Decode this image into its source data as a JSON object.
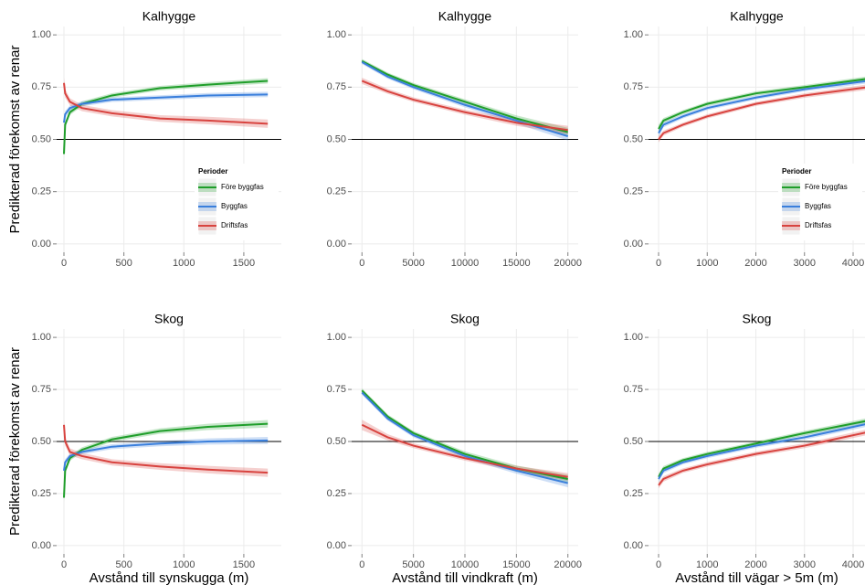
{
  "chart_data": [
    {
      "type": "line",
      "title": "Kalhygge",
      "ylabel": "Predikterad förekomst av renar",
      "legend_title": "Perioder",
      "legend": "lower right",
      "x": [
        0,
        10,
        50,
        150,
        400,
        800,
        1200,
        1700
      ],
      "xlim": [
        -61,
        1813
      ],
      "xticks": [
        0,
        500,
        1000,
        1500
      ],
      "ylim": [
        -0.04,
        1.04
      ],
      "yticks": [
        {
          "value": 0,
          "label": "0.00"
        },
        0.25,
        {
          "value": 0.5,
          "label": "0.50"
        },
        0.75,
        {
          "value": 1,
          "label": "1.00"
        }
      ],
      "hline": 0.5,
      "grid": true,
      "series": [
        {
          "name": "Före byggfas",
          "color": "#1f9e2a",
          "values": [
            0.43,
            0.57,
            0.63,
            0.67,
            0.71,
            0.745,
            0.762,
            0.78
          ],
          "lower": [
            0.41,
            0.555,
            0.617,
            0.658,
            0.699,
            0.734,
            0.75,
            0.767
          ],
          "upper": [
            0.45,
            0.585,
            0.643,
            0.682,
            0.721,
            0.756,
            0.774,
            0.793
          ]
        },
        {
          "name": "Byggfas",
          "color": "#3a7fdc",
          "values": [
            0.58,
            0.62,
            0.65,
            0.67,
            0.69,
            0.7,
            0.71,
            0.715
          ],
          "lower": [
            0.56,
            0.605,
            0.637,
            0.658,
            0.679,
            0.689,
            0.698,
            0.702
          ],
          "upper": [
            0.6,
            0.635,
            0.663,
            0.682,
            0.701,
            0.711,
            0.722,
            0.728
          ]
        },
        {
          "name": "Driftsfas",
          "color": "#d8433f",
          "values": [
            0.77,
            0.72,
            0.68,
            0.65,
            0.625,
            0.6,
            0.59,
            0.575
          ],
          "lower": [
            0.745,
            0.7,
            0.663,
            0.635,
            0.61,
            0.584,
            0.572,
            0.555
          ],
          "upper": [
            0.795,
            0.74,
            0.697,
            0.665,
            0.64,
            0.616,
            0.608,
            0.595
          ]
        }
      ]
    },
    {
      "type": "line",
      "title": "Kalhygge",
      "x": [
        0,
        2500,
        5000,
        10000,
        15000,
        20000
      ],
      "xlim": [
        -1000,
        21000
      ],
      "xticks": [
        0,
        5000,
        10000,
        15000,
        20000
      ],
      "ylim": [
        -0.04,
        1.04
      ],
      "yticks": [
        {
          "value": 0,
          "label": "0.00"
        },
        0.25,
        {
          "value": 0.5,
          "label": "0.50"
        },
        0.75,
        {
          "value": 1,
          "label": "1.00"
        }
      ],
      "hline": 0.5,
      "grid": true,
      "series": [
        {
          "name": "Före byggfas",
          "color": "#1f9e2a",
          "values": [
            0.875,
            0.81,
            0.76,
            0.68,
            0.6,
            0.535
          ],
          "lower": [
            0.865,
            0.8,
            0.75,
            0.668,
            0.585,
            0.515
          ],
          "upper": [
            0.885,
            0.82,
            0.77,
            0.692,
            0.615,
            0.555
          ]
        },
        {
          "name": "Byggfas",
          "color": "#3a7fdc",
          "values": [
            0.87,
            0.8,
            0.75,
            0.665,
            0.59,
            0.515
          ],
          "lower": [
            0.86,
            0.79,
            0.74,
            0.653,
            0.575,
            0.495
          ],
          "upper": [
            0.88,
            0.81,
            0.76,
            0.677,
            0.605,
            0.535
          ]
        },
        {
          "name": "Driftsfas",
          "color": "#d8433f",
          "values": [
            0.78,
            0.73,
            0.69,
            0.63,
            0.58,
            0.545
          ],
          "lower": [
            0.765,
            0.718,
            0.679,
            0.618,
            0.565,
            0.525
          ],
          "upper": [
            0.795,
            0.742,
            0.701,
            0.642,
            0.595,
            0.565
          ]
        }
      ]
    },
    {
      "type": "line",
      "title": "Kalhygge",
      "legend_title": "Perioder",
      "legend": "lower right",
      "x": [
        0,
        100,
        500,
        1000,
        2000,
        3000,
        4300
      ],
      "xlim": [
        -207,
        4244
      ],
      "xticks": [
        0,
        1000,
        2000,
        3000,
        4000
      ],
      "ylim": [
        -0.04,
        1.04
      ],
      "yticks": [
        {
          "value": 0,
          "label": "0.00"
        },
        0.25,
        {
          "value": 0.5,
          "label": "0.50"
        },
        0.75,
        {
          "value": 1,
          "label": "1.00"
        }
      ],
      "hline": 0.5,
      "grid": true,
      "series": [
        {
          "name": "Före byggfas",
          "color": "#1f9e2a",
          "values": [
            0.55,
            0.59,
            0.63,
            0.67,
            0.72,
            0.75,
            0.79
          ],
          "lower": [
            0.53,
            0.578,
            0.62,
            0.66,
            0.71,
            0.74,
            0.778
          ],
          "upper": [
            0.57,
            0.602,
            0.64,
            0.68,
            0.73,
            0.76,
            0.802
          ]
        },
        {
          "name": "Byggfas",
          "color": "#3a7fdc",
          "values": [
            0.53,
            0.57,
            0.61,
            0.65,
            0.7,
            0.74,
            0.78
          ],
          "lower": [
            0.51,
            0.558,
            0.6,
            0.64,
            0.69,
            0.73,
            0.768
          ],
          "upper": [
            0.55,
            0.582,
            0.62,
            0.66,
            0.71,
            0.75,
            0.792
          ]
        },
        {
          "name": "Driftsfas",
          "color": "#d8433f",
          "values": [
            0.5,
            0.53,
            0.57,
            0.61,
            0.67,
            0.71,
            0.75
          ],
          "lower": [
            0.485,
            0.518,
            0.56,
            0.6,
            0.66,
            0.699,
            0.737
          ],
          "upper": [
            0.515,
            0.542,
            0.58,
            0.62,
            0.68,
            0.721,
            0.763
          ]
        }
      ]
    },
    {
      "type": "line",
      "title": "Skog",
      "ylabel": "Predikterad förekomst av renar",
      "xlabel": "Avstånd till synskugga (m)",
      "x": [
        0,
        10,
        50,
        150,
        400,
        800,
        1200,
        1700
      ],
      "xlim": [
        -61,
        1813
      ],
      "xticks": [
        0,
        500,
        1000,
        1500
      ],
      "ylim": [
        -0.04,
        1.04
      ],
      "yticks": [
        {
          "value": 0,
          "label": "0.00"
        },
        0.25,
        {
          "value": 0.5,
          "label": "0.50"
        },
        0.75,
        {
          "value": 1,
          "label": "1.00"
        }
      ],
      "hline": 0.5,
      "grid": true,
      "series": [
        {
          "name": "Före byggfas",
          "color": "#1f9e2a",
          "values": [
            0.23,
            0.36,
            0.42,
            0.46,
            0.51,
            0.55,
            0.57,
            0.585
          ],
          "lower": [
            0.21,
            0.345,
            0.407,
            0.448,
            0.498,
            0.537,
            0.555,
            0.567
          ],
          "upper": [
            0.25,
            0.375,
            0.433,
            0.472,
            0.522,
            0.563,
            0.585,
            0.603
          ]
        },
        {
          "name": "Byggfas",
          "color": "#3a7fdc",
          "values": [
            0.36,
            0.4,
            0.43,
            0.45,
            0.475,
            0.49,
            0.5,
            0.505
          ],
          "lower": [
            0.34,
            0.385,
            0.417,
            0.438,
            0.463,
            0.477,
            0.485,
            0.488
          ],
          "upper": [
            0.38,
            0.415,
            0.443,
            0.462,
            0.487,
            0.503,
            0.515,
            0.522
          ]
        },
        {
          "name": "Driftsfas",
          "color": "#d8433f",
          "values": [
            0.58,
            0.5,
            0.45,
            0.43,
            0.4,
            0.38,
            0.365,
            0.35
          ],
          "lower": [
            0.555,
            0.48,
            0.433,
            0.415,
            0.385,
            0.364,
            0.347,
            0.33
          ],
          "upper": [
            0.605,
            0.52,
            0.467,
            0.445,
            0.415,
            0.396,
            0.383,
            0.37
          ]
        }
      ]
    },
    {
      "type": "line",
      "title": "Skog",
      "xlabel": "Avstånd till vindkraft (m)",
      "x": [
        0,
        2500,
        5000,
        10000,
        15000,
        20000
      ],
      "xlim": [
        -1000,
        21000
      ],
      "xticks": [
        0,
        5000,
        10000,
        15000,
        20000
      ],
      "ylim": [
        -0.04,
        1.04
      ],
      "yticks": [
        {
          "value": 0,
          "label": "0.00"
        },
        0.25,
        {
          "value": 0.5,
          "label": "0.50"
        },
        0.75,
        {
          "value": 1,
          "label": "1.00"
        }
      ],
      "hline": 0.5,
      "grid": true,
      "series": [
        {
          "name": "Före byggfas",
          "color": "#1f9e2a",
          "values": [
            0.745,
            0.62,
            0.54,
            0.44,
            0.37,
            0.32
          ],
          "lower": [
            0.735,
            0.61,
            0.53,
            0.428,
            0.355,
            0.3
          ],
          "upper": [
            0.755,
            0.63,
            0.55,
            0.452,
            0.385,
            0.34
          ]
        },
        {
          "name": "Byggfas",
          "color": "#3a7fdc",
          "values": [
            0.735,
            0.61,
            0.53,
            0.43,
            0.36,
            0.3
          ],
          "lower": [
            0.725,
            0.6,
            0.52,
            0.418,
            0.345,
            0.28
          ],
          "upper": [
            0.745,
            0.62,
            0.54,
            0.442,
            0.375,
            0.32
          ]
        },
        {
          "name": "Driftsfas",
          "color": "#d8433f",
          "values": [
            0.58,
            0.52,
            0.48,
            0.42,
            0.37,
            0.33
          ],
          "lower": [
            0.555,
            0.505,
            0.468,
            0.408,
            0.357,
            0.312
          ],
          "upper": [
            0.605,
            0.535,
            0.492,
            0.432,
            0.383,
            0.348
          ]
        }
      ]
    },
    {
      "type": "line",
      "title": "Skog",
      "xlabel": "Avstånd till vägar > 5m (m)",
      "x": [
        0,
        100,
        500,
        1000,
        2000,
        3000,
        4300
      ],
      "xlim": [
        -207,
        4244
      ],
      "xticks": [
        0,
        1000,
        2000,
        3000,
        4000
      ],
      "ylim": [
        -0.04,
        1.04
      ],
      "yticks": [
        {
          "value": 0,
          "label": "0.00"
        },
        0.25,
        {
          "value": 0.5,
          "label": "0.50"
        },
        0.75,
        {
          "value": 1,
          "label": "1.00"
        }
      ],
      "hline": 0.5,
      "grid": true,
      "series": [
        {
          "name": "Före byggfas",
          "color": "#1f9e2a",
          "values": [
            0.33,
            0.37,
            0.41,
            0.44,
            0.49,
            0.54,
            0.6
          ],
          "lower": [
            0.315,
            0.358,
            0.4,
            0.43,
            0.48,
            0.529,
            0.587
          ],
          "upper": [
            0.345,
            0.382,
            0.42,
            0.45,
            0.5,
            0.551,
            0.613
          ]
        },
        {
          "name": "Byggfas",
          "color": "#3a7fdc",
          "values": [
            0.32,
            0.36,
            0.4,
            0.43,
            0.48,
            0.52,
            0.585
          ],
          "lower": [
            0.305,
            0.348,
            0.39,
            0.42,
            0.47,
            0.509,
            0.572
          ],
          "upper": [
            0.335,
            0.372,
            0.41,
            0.44,
            0.49,
            0.531,
            0.598
          ]
        },
        {
          "name": "Driftsfas",
          "color": "#d8433f",
          "values": [
            0.29,
            0.32,
            0.36,
            0.39,
            0.44,
            0.48,
            0.545
          ],
          "lower": [
            0.275,
            0.307,
            0.349,
            0.379,
            0.429,
            0.468,
            0.531
          ],
          "upper": [
            0.305,
            0.333,
            0.371,
            0.401,
            0.451,
            0.492,
            0.559
          ]
        }
      ]
    }
  ]
}
